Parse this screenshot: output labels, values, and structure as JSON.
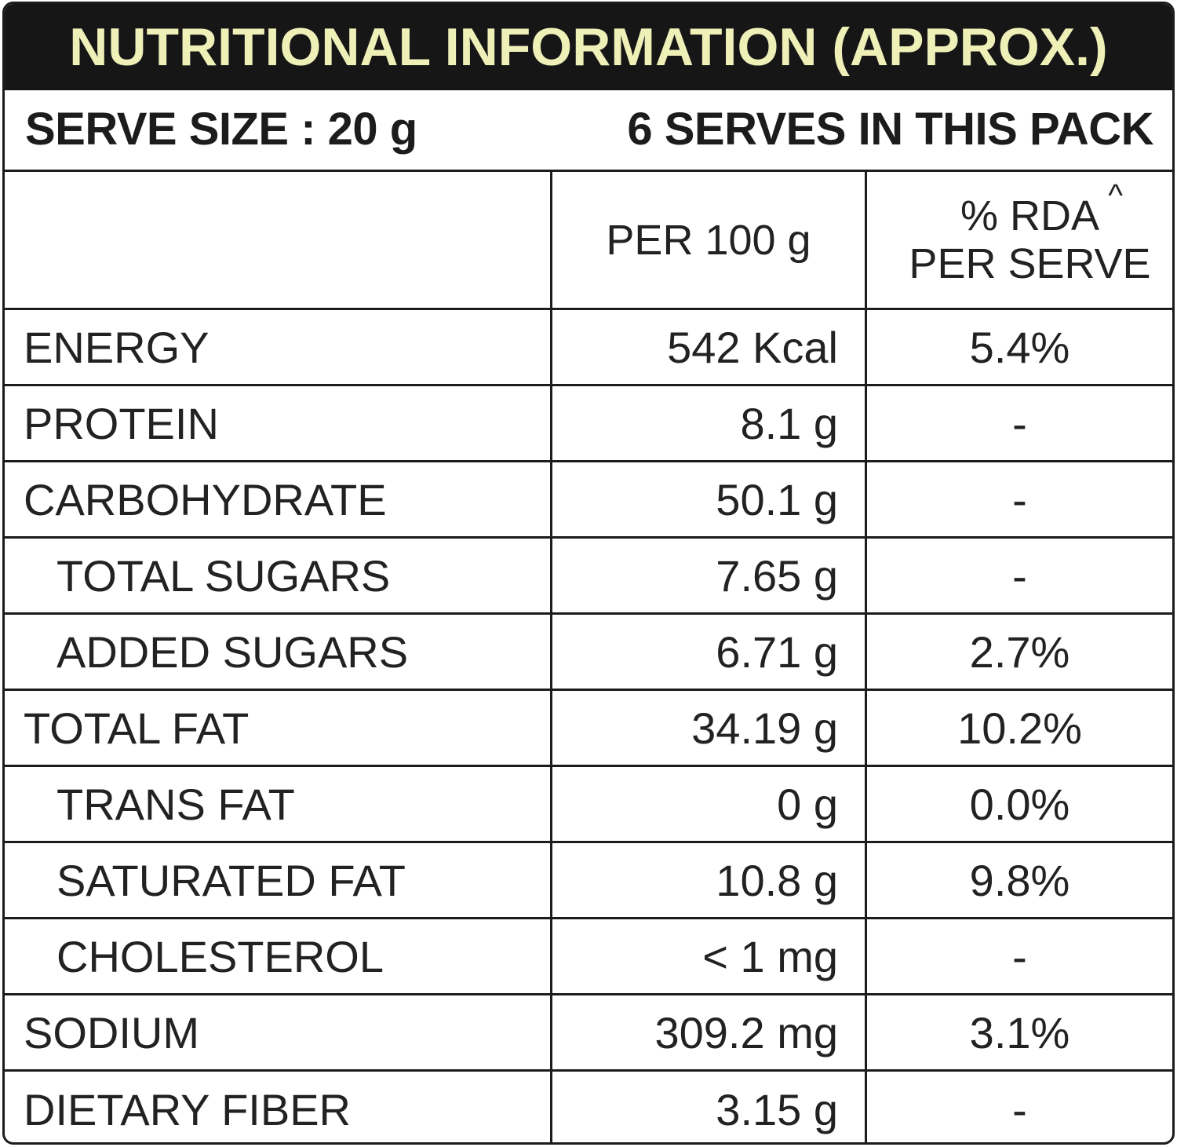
{
  "title": "NUTRITIONAL INFORMATION (APPROX.)",
  "serve_size": "SERVE SIZE : 20 g",
  "serves_in_pack": "6 SERVES IN THIS PACK",
  "header": {
    "per_100g": "PER 100 g",
    "rda_line1": "% RDA",
    "rda_caret": "^",
    "rda_line2": "PER SERVE"
  },
  "rows": [
    {
      "name": "ENERGY",
      "per100": "542 Kcal",
      "rda": "5.4%"
    },
    {
      "name": "PROTEIN",
      "per100": "8.1 g",
      "rda": "-"
    },
    {
      "name": "CARBOHYDRATE",
      "per100": "50.1 g",
      "rda": "-"
    },
    {
      "name": "TOTAL SUGARS",
      "per100": "7.65 g",
      "rda": "-"
    },
    {
      "name": "ADDED SUGARS",
      "per100": "6.71 g",
      "rda": "2.7%"
    },
    {
      "name": "TOTAL FAT",
      "per100": "34.19 g",
      "rda": "10.2%"
    },
    {
      "name": "TRANS FAT",
      "per100": "0 g",
      "rda": "0.0%"
    },
    {
      "name": "SATURATED FAT",
      "per100": "10.8 g",
      "rda": "9.8%"
    },
    {
      "name": "CHOLESTEROL",
      "per100": "< 1 mg",
      "rda": "-"
    },
    {
      "name": "SODIUM",
      "per100": "309.2 mg",
      "rda": "3.1%"
    },
    {
      "name": "DIETARY FIBER",
      "per100": "3.15 g",
      "rda": "-"
    }
  ],
  "colors": {
    "title_background": "#161616",
    "title_text": "#eef0b8",
    "border": "#1c1c1c",
    "text": "#222222"
  }
}
